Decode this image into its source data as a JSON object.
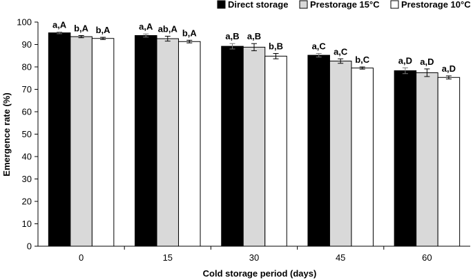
{
  "chart_data": {
    "type": "bar",
    "xlabel": "Cold storage period (days)",
    "ylabel": "Emergence rate (%)",
    "ylim": [
      0,
      100
    ],
    "yticks": [
      0,
      10,
      20,
      30,
      40,
      50,
      60,
      70,
      80,
      90,
      100
    ],
    "categories": [
      "0",
      "15",
      "30",
      "45",
      "60"
    ],
    "legend_position": "top-right",
    "grid": false,
    "series": [
      {
        "name": "Direct storage",
        "color": "#000000",
        "values": [
          95.2,
          94.0,
          89.2,
          85.2,
          78.3
        ],
        "errors": [
          0.4,
          0.7,
          1.2,
          0.8,
          1.3
        ],
        "labels": [
          "a,A",
          "a,A",
          "a,B",
          "a,C",
          "a,D"
        ]
      },
      {
        "name": "Prestorage 15°C",
        "color": "#d9d9d9",
        "values": [
          93.5,
          92.6,
          88.8,
          82.6,
          77.4
        ],
        "errors": [
          0.5,
          1.1,
          1.6,
          1.0,
          1.7
        ],
        "labels": [
          "b,A",
          "ab,A",
          "a,B",
          "a,C",
          "a,D"
        ]
      },
      {
        "name": "Prestorage 10°C",
        "color": "#ffffff",
        "values": [
          92.7,
          91.3,
          84.8,
          79.5,
          75.3
        ],
        "errors": [
          0.5,
          0.6,
          1.2,
          0.5,
          0.7
        ],
        "labels": [
          "b,A",
          "b,A",
          "b,B",
          "b,C",
          "a,D"
        ]
      }
    ]
  }
}
